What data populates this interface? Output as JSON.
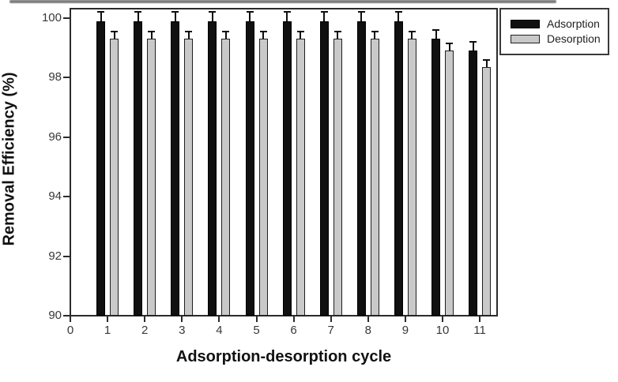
{
  "chart_data": {
    "type": "bar",
    "title": "",
    "xlabel": "Adsorption-desorption cycle",
    "ylabel": "Removal Efficiency (%)",
    "categories": [
      1,
      2,
      3,
      4,
      5,
      6,
      7,
      8,
      9,
      10,
      11
    ],
    "series": [
      {
        "name": "Adsorption",
        "color": "#101010",
        "values": [
          99.9,
          99.9,
          99.9,
          99.9,
          99.9,
          99.9,
          99.9,
          99.9,
          99.9,
          99.3,
          98.9
        ],
        "error_up": [
          0.3,
          0.3,
          0.3,
          0.3,
          0.3,
          0.3,
          0.3,
          0.3,
          0.3,
          0.3,
          0.3
        ]
      },
      {
        "name": "Desorption",
        "color": "#c9c9c9",
        "values": [
          99.3,
          99.3,
          99.3,
          99.3,
          99.3,
          99.3,
          99.3,
          99.3,
          99.3,
          98.9,
          98.35
        ],
        "error_up": [
          0.25,
          0.25,
          0.25,
          0.25,
          0.25,
          0.25,
          0.25,
          0.25,
          0.25,
          0.25,
          0.25
        ]
      }
    ],
    "x_ticks": [
      0,
      1,
      2,
      3,
      4,
      5,
      6,
      7,
      8,
      9,
      10,
      11
    ],
    "y_ticks": [
      90,
      92,
      94,
      96,
      98,
      100
    ],
    "xlim": [
      0,
      11.5
    ],
    "ylim": [
      90,
      100.4
    ],
    "grid": false,
    "error_bars": "upper-only",
    "legend_position": "top-right-outside"
  },
  "colors": {
    "frame": "#2b2b2b",
    "tick_text": "#383838",
    "axis_title_text": "#111111",
    "bar_adsorption": "#101010",
    "bar_desorption": "#c9c9c9",
    "error_bar": "#0f0f0f",
    "background": "#ffffff"
  }
}
